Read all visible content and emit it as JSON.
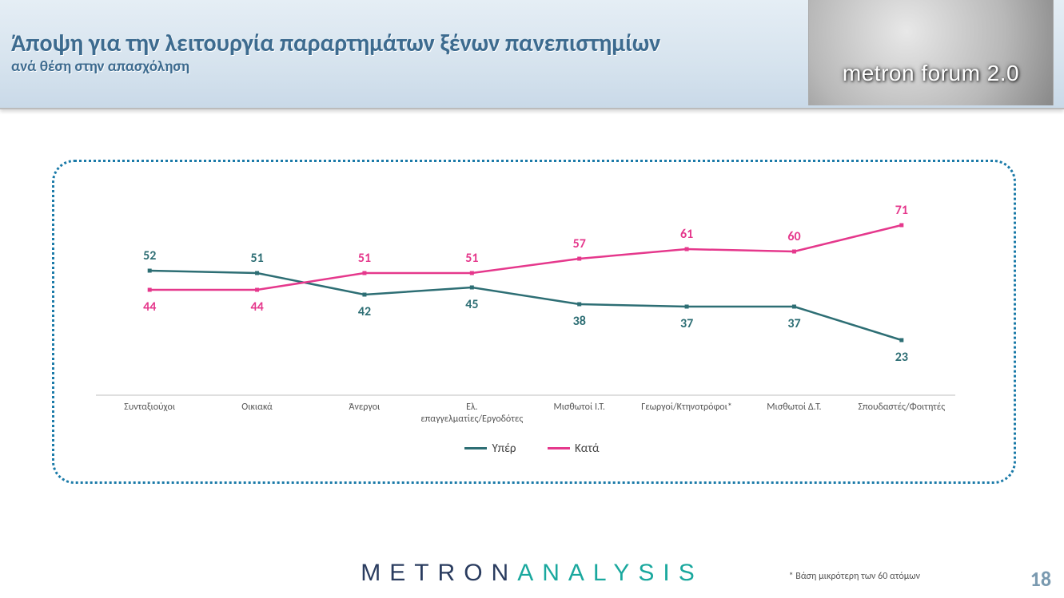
{
  "header": {
    "title": "Άποψη για την λειτουργία παραρτημάτων ξένων πανεπιστημίων",
    "subtitle": "ανά θέση στην απασχόληση",
    "forum_text": "metron forum 2.0"
  },
  "chart": {
    "type": "line",
    "categories": [
      "Συνταξιούχοι",
      "Οικιακά",
      "Άνεργοι",
      "Ελ. επαγγελματίες/Εργοδότες",
      "Μισθωτοί Ι.Τ.",
      "Γεωργοί/Κτηνοτρόφοι*",
      "Μισθωτοί Δ.Τ.",
      "Σπουδαστές/Φοιτητές"
    ],
    "series": [
      {
        "name": "Υπέρ",
        "color": "#2d6e74",
        "values": [
          52,
          51,
          42,
          45,
          38,
          37,
          37,
          23
        ]
      },
      {
        "name": "Κατά",
        "color": "#e5388c",
        "values": [
          44,
          44,
          51,
          51,
          57,
          61,
          60,
          71
        ]
      }
    ],
    "ylim": [
      0,
      80
    ],
    "line_width": 2.5,
    "marker": "square",
    "marker_size": 5,
    "background_color": "#ffffff",
    "border_style": "dotted",
    "border_color": "#1a7aa8",
    "axis_line_color": "#bfbfbf",
    "label_fontsize": 16,
    "xlabel_fontsize": 12,
    "xlabel_color": "#555555"
  },
  "legend": {
    "items": [
      {
        "label": "Υπέρ",
        "color": "#2d6e74"
      },
      {
        "label": "Κατά",
        "color": "#e5388c"
      }
    ]
  },
  "footer": {
    "logo_part1": "METRON",
    "logo_part2": "ANALYSIS",
    "footnote": "*  Βάση μικρότερη των 60 ατόμων",
    "page_number": "18"
  }
}
